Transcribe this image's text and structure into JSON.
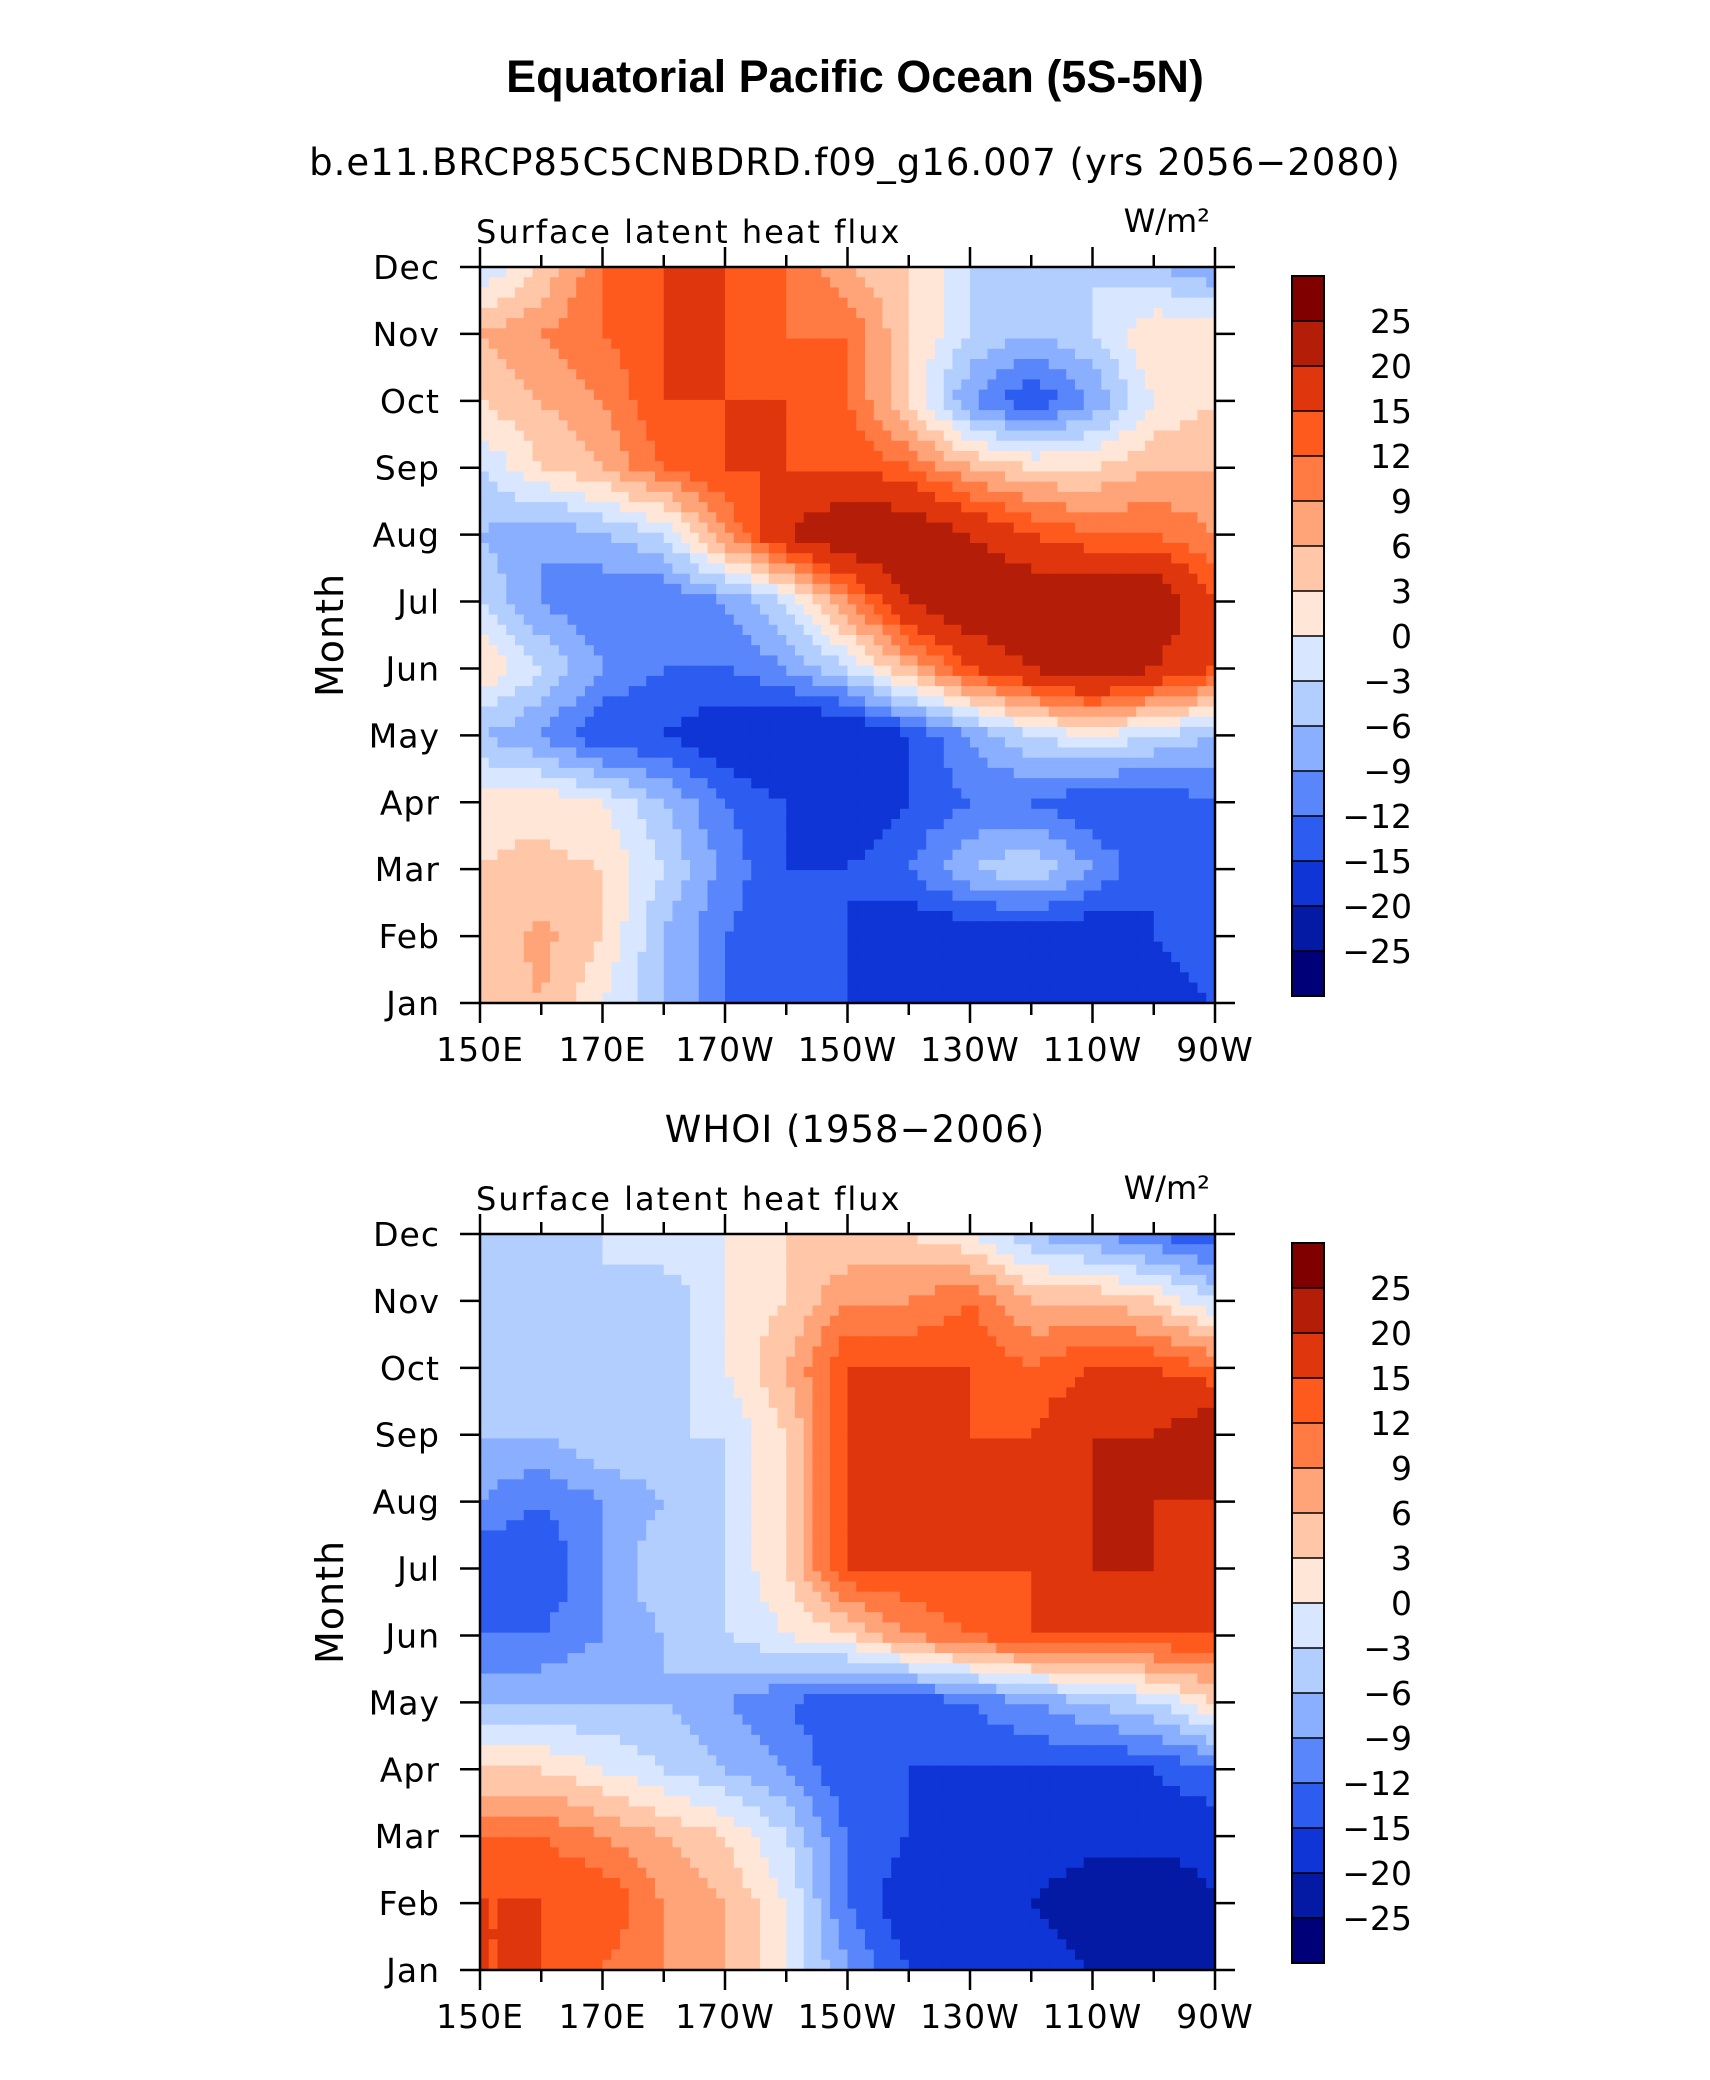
{
  "title": "Equatorial Pacific Ocean (5S-5N)",
  "colorbar_labels": [
    "25",
    "20",
    "15",
    "12",
    "9",
    "6",
    "3",
    "0",
    "−3",
    "−6",
    "−9",
    "−12",
    "−15",
    "−20",
    "−25"
  ],
  "colorbar_colors": [
    "#800000",
    "#b41e08",
    "#e0360d",
    "#ff5a1e",
    "#ff7b43",
    "#ffa478",
    "#ffc6a7",
    "#ffe6d6",
    "#d8e6ff",
    "#b2ceff",
    "#8aafff",
    "#5a86fb",
    "#2d5cf1",
    "#0f35d6",
    "#041aa4",
    "#000078"
  ],
  "chart_data": [
    {
      "type": "heatmap",
      "subtitle": "b.e11.BRCP85C5CNBDRD.f09_g16.007 (yrs 2056−2080)",
      "variable": "Surface latent heat flux",
      "units": "W/m²",
      "ylabel": "Month",
      "x_ticks": [
        "150E",
        "170E",
        "170W",
        "150W",
        "130W",
        "110W",
        "90W"
      ],
      "y_ticks": [
        "Jan",
        "Feb",
        "Mar",
        "Apr",
        "May",
        "Jun",
        "Jul",
        "Aug",
        "Sep",
        "Oct",
        "Nov",
        "Dec"
      ],
      "x": [
        "150E",
        "160E",
        "170E",
        "180",
        "170W",
        "160W",
        "150W",
        "140W",
        "130W",
        "120W",
        "110W",
        "100W",
        "90W"
      ],
      "y": [
        "Jan",
        "Feb",
        "Mar",
        "Apr",
        "May",
        "Jun",
        "Jul",
        "Aug",
        "Sep",
        "Oct",
        "Nov",
        "Dec"
      ],
      "z": [
        [
          3,
          6,
          0,
          -6,
          -12,
          -15,
          -15,
          -20,
          -20,
          -20,
          -20,
          -18,
          -15
        ],
        [
          4,
          7,
          3,
          -6,
          -12,
          -15,
          -15,
          -18,
          -18,
          -18,
          -18,
          -15,
          -12
        ],
        [
          3,
          4,
          3,
          -3,
          -10,
          -15,
          -15,
          -12,
          -6,
          -3,
          -9,
          -15,
          -12
        ],
        [
          2,
          2,
          0,
          -6,
          -12,
          -15,
          -18,
          -15,
          -12,
          -12,
          -15,
          -15,
          -12
        ],
        [
          -6,
          -9,
          -15,
          -15,
          -18,
          -20,
          -20,
          -15,
          -9,
          -3,
          0,
          -3,
          -6
        ],
        [
          3,
          -3,
          -9,
          -12,
          -12,
          -9,
          -3,
          6,
          15,
          20,
          25,
          20,
          15
        ],
        [
          -3,
          -9,
          -12,
          -12,
          -9,
          -3,
          9,
          20,
          25,
          25,
          25,
          25,
          15
        ],
        [
          -6,
          -9,
          -6,
          -3,
          9,
          20,
          25,
          25,
          20,
          15,
          12,
          12,
          9
        ],
        [
          -3,
          3,
          6,
          12,
          15,
          15,
          15,
          12,
          6,
          3,
          3,
          6,
          6
        ],
        [
          3,
          6,
          9,
          15,
          15,
          15,
          12,
          3,
          -9,
          -15,
          -9,
          0,
          3
        ],
        [
          6,
          9,
          12,
          15,
          15,
          12,
          12,
          3,
          -3,
          -6,
          -3,
          3,
          3
        ],
        [
          -3,
          3,
          12,
          15,
          15,
          12,
          6,
          3,
          -3,
          -3,
          -3,
          -6,
          -9
        ]
      ]
    },
    {
      "type": "heatmap",
      "subtitle": "WHOI (1958−2006)",
      "variable": "Surface latent heat flux",
      "units": "W/m²",
      "ylabel": "Month",
      "x_ticks": [
        "150E",
        "170E",
        "170W",
        "150W",
        "130W",
        "110W",
        "90W"
      ],
      "y_ticks": [
        "Jan",
        "Feb",
        "Mar",
        "Apr",
        "May",
        "Jun",
        "Jul",
        "Aug",
        "Sep",
        "Oct",
        "Nov",
        "Dec"
      ],
      "x": [
        "150E",
        "160E",
        "170E",
        "180",
        "170W",
        "160W",
        "150W",
        "140W",
        "130W",
        "120W",
        "110W",
        "100W",
        "90W"
      ],
      "y": [
        "Jan",
        "Feb",
        "Mar",
        "Apr",
        "May",
        "Jun",
        "Jul",
        "Aug",
        "Sep",
        "Oct",
        "Nov",
        "Dec"
      ],
      "z": [
        [
          15,
          15,
          12,
          9,
          6,
          0,
          -9,
          -15,
          -15,
          -15,
          -20,
          -20,
          -25
        ],
        [
          15,
          15,
          15,
          9,
          6,
          0,
          -12,
          -18,
          -18,
          -20,
          -25,
          -25,
          -20
        ],
        [
          12,
          12,
          9,
          6,
          3,
          -3,
          -12,
          -15,
          -18,
          -15,
          -18,
          -18,
          -18
        ],
        [
          3,
          3,
          0,
          -3,
          -6,
          -9,
          -15,
          -15,
          -15,
          -15,
          -15,
          -15,
          -12
        ],
        [
          -6,
          -6,
          -6,
          -6,
          -9,
          -12,
          -15,
          -15,
          -12,
          -9,
          -6,
          -3,
          3
        ],
        [
          -12,
          -12,
          -9,
          -6,
          -3,
          0,
          3,
          9,
          12,
          15,
          15,
          15,
          15
        ],
        [
          -15,
          -15,
          -9,
          -3,
          -3,
          3,
          15,
          15,
          15,
          15,
          20,
          20,
          15
        ],
        [
          -9,
          -12,
          -9,
          -6,
          -3,
          3,
          15,
          20,
          20,
          15,
          20,
          20,
          20
        ],
        [
          -6,
          -6,
          -3,
          -3,
          -3,
          3,
          15,
          15,
          15,
          15,
          20,
          20,
          25
        ],
        [
          -6,
          -3,
          -3,
          -6,
          0,
          6,
          15,
          15,
          15,
          12,
          15,
          15,
          12
        ],
        [
          -6,
          -6,
          -3,
          -6,
          0,
          3,
          9,
          9,
          12,
          6,
          6,
          3,
          -3
        ],
        [
          -3,
          -3,
          -3,
          0,
          0,
          3,
          3,
          3,
          0,
          -6,
          -9,
          -12,
          -15
        ]
      ]
    }
  ]
}
